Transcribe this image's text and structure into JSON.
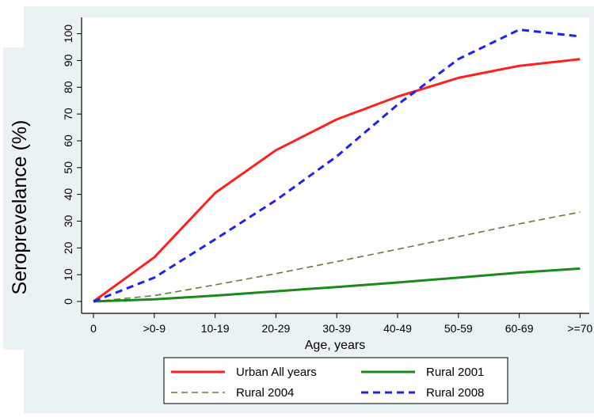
{
  "colors": {
    "background_panel": "#eaf2f3",
    "plot_background": "#ffffff",
    "axis": "#000000",
    "urban": "#ff2020",
    "rural2001": "#1a8a1a",
    "rural2004": "#5f7f3f",
    "rural2008": "#2222ee"
  },
  "chart_data": {
    "type": "line",
    "title": "",
    "xlabel": "Age, years",
    "ylabel": "Seroprevelance (%)",
    "categories": [
      "0",
      ">0-9",
      "10-19",
      "20-29",
      "30-39",
      "40-49",
      "50-59",
      "60-69",
      ">=70"
    ],
    "yticks": [
      0,
      10,
      20,
      30,
      40,
      50,
      60,
      70,
      80,
      90,
      100
    ],
    "ylim": [
      0,
      100
    ],
    "grid": false,
    "legend_position": "bottom",
    "series": [
      {
        "name": "Urban All years",
        "color_key": "urban",
        "dash": "solid",
        "values": [
          0,
          16.5,
          40.5,
          56.5,
          68,
          76.5,
          83.5,
          88,
          90.5
        ]
      },
      {
        "name": "Rural 2001",
        "color_key": "rural2001",
        "dash": "solid",
        "values": [
          0,
          0.8,
          2.2,
          3.8,
          5.4,
          7.1,
          8.9,
          10.8,
          12.3
        ]
      },
      {
        "name": "Rural 2004",
        "color_key": "rural2004",
        "dash": "dashed-thin",
        "values": [
          0,
          2.2,
          6.2,
          10.4,
          14.9,
          19.5,
          24.2,
          29,
          33.4
        ]
      },
      {
        "name": "Rural 2008",
        "color_key": "rural2008",
        "dash": "dashed",
        "values": [
          0,
          8.9,
          23.2,
          37.8,
          54.2,
          73.5,
          90.5,
          101.5,
          99
        ]
      }
    ]
  }
}
